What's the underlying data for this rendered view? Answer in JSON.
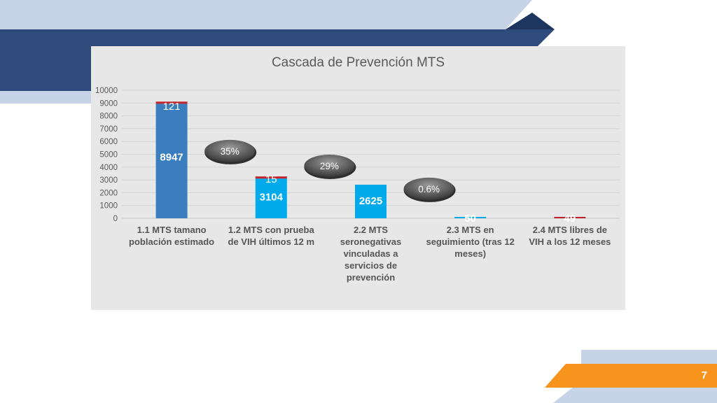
{
  "slide": {
    "page_number": "7"
  },
  "colors": {
    "navy": "#2f4b7c",
    "light_blue_band": "#c7d4e8",
    "bar_dark": "#3a7ebf",
    "bar_light": "#00aaeb",
    "top_segment": "#c0232c",
    "orange": "#f7941d"
  },
  "chart_data": {
    "type": "bar",
    "title": "Cascada de Prevención  MTS",
    "ylim": [
      0,
      10000
    ],
    "yticks": [
      0,
      1000,
      2000,
      3000,
      4000,
      5000,
      6000,
      7000,
      8000,
      9000,
      10000
    ],
    "grid": true,
    "categories": [
      "1.1 MTS tamano población estimado",
      "1.2 MTS con prueba de VIH últimos 12 m",
      "2.2 MTS seronegativas vinculadas a servicios de prevención",
      "2.3 MTS en seguimiento (tras 12 meses)",
      "2.4 MTS libres de VIH a los 12 meses"
    ],
    "category_lines": [
      [
        "1.1 MTS tamano",
        "población estimado"
      ],
      [
        "1.2 MTS con prueba",
        "de VIH últimos 12 m"
      ],
      [
        "2.2 MTS",
        "seronegativas",
        "vinculadas a",
        "servicios de",
        "prevención"
      ],
      [
        "2.3 MTS en",
        "seguimiento (tras 12",
        "meses)"
      ],
      [
        "2.4 MTS libres de",
        "VIH a los 12 meses"
      ]
    ],
    "series": [
      {
        "values": [
          8947,
          3104,
          2625,
          50,
          49
        ],
        "labels": [
          "8947",
          "3104",
          "2625",
          "50",
          "49"
        ]
      },
      {
        "values": [
          121,
          15,
          0,
          0,
          0
        ],
        "labels": [
          "121",
          "15",
          "",
          "",
          ""
        ]
      }
    ],
    "bar_colors": [
      "#3a7ebf",
      "#00aaeb",
      "#00aaeb",
      "#00aaeb",
      "#c0232c"
    ],
    "annotations": [
      {
        "text": "35%",
        "between": [
          0,
          1
        ],
        "y": 5250
      },
      {
        "text": "29%",
        "between": [
          1,
          2
        ],
        "y": 4100
      },
      {
        "text": "0.6%",
        "between": [
          2,
          3
        ],
        "y": 2300
      }
    ]
  }
}
